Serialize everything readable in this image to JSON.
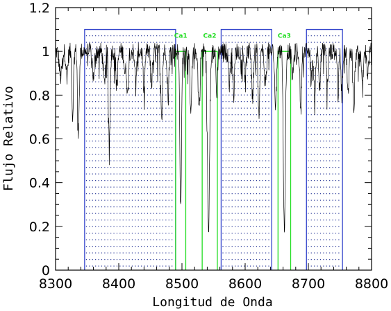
{
  "chart_data": {
    "type": "line",
    "xlabel": "Longitud de Onda",
    "ylabel": "Flujo Relativo",
    "xlim": [
      8300,
      8800
    ],
    "ylim": [
      0,
      1.2
    ],
    "xticks": [
      8300,
      8400,
      8500,
      8600,
      8700,
      8800
    ],
    "xtick_labels": [
      "8300",
      "8400",
      "8500",
      "8600",
      "8700",
      "8800"
    ],
    "yticks": [
      0,
      0.2,
      0.4,
      0.6,
      0.8,
      1.0,
      1.2
    ],
    "ytick_labels": [
      "0",
      "0.2",
      "0.4",
      "0.6",
      "0.8",
      "1",
      "1.2"
    ],
    "continuum_bands": [
      {
        "x0": 8346,
        "x1": 8490,
        "height": 1.1
      },
      {
        "x0": 8562,
        "x1": 8642,
        "height": 1.1
      },
      {
        "x0": 8697,
        "x1": 8754,
        "height": 1.1
      }
    ],
    "line_bands": [
      {
        "name": "Ca1",
        "x0": 8490,
        "x1": 8506,
        "height": 1.0
      },
      {
        "name": "Ca2",
        "x0": 8532,
        "x1": 8556,
        "height": 1.0
      },
      {
        "name": "Ca3",
        "x0": 8652,
        "x1": 8672,
        "height": 1.0
      }
    ],
    "spectrum_features": [
      {
        "x": 8308,
        "depth": 0.12,
        "width": 2
      },
      {
        "x": 8318,
        "depth": 0.1,
        "width": 1.5
      },
      {
        "x": 8327,
        "depth": 0.3,
        "width": 1.2
      },
      {
        "x": 8336,
        "depth": 0.4,
        "width": 1.2
      },
      {
        "x": 8360,
        "depth": 0.12,
        "width": 1.5
      },
      {
        "x": 8377,
        "depth": 0.15,
        "width": 1.5
      },
      {
        "x": 8385,
        "depth": 0.42,
        "width": 1.2
      },
      {
        "x": 8397,
        "depth": 0.15,
        "width": 1.5
      },
      {
        "x": 8410,
        "depth": 0.1,
        "width": 1.5
      },
      {
        "x": 8414,
        "depth": 0.2,
        "width": 1.2
      },
      {
        "x": 8427,
        "depth": 0.15,
        "width": 1.3
      },
      {
        "x": 8440,
        "depth": 0.2,
        "width": 1.3
      },
      {
        "x": 8452,
        "depth": 0.12,
        "width": 1.5
      },
      {
        "x": 8468,
        "depth": 0.3,
        "width": 1.2
      },
      {
        "x": 8478,
        "depth": 0.2,
        "width": 1.2
      },
      {
        "x": 8498,
        "depth": 0.72,
        "width": 1.3
      },
      {
        "x": 8514,
        "depth": 0.25,
        "width": 1.5
      },
      {
        "x": 8527,
        "depth": 0.25,
        "width": 1.5
      },
      {
        "x": 8542,
        "depth": 0.84,
        "width": 1.6
      },
      {
        "x": 8555,
        "depth": 0.2,
        "width": 1.2
      },
      {
        "x": 8575,
        "depth": 0.15,
        "width": 1.3
      },
      {
        "x": 8582,
        "depth": 0.2,
        "width": 1.2
      },
      {
        "x": 8600,
        "depth": 0.12,
        "width": 1.5
      },
      {
        "x": 8612,
        "depth": 0.18,
        "width": 1.3
      },
      {
        "x": 8622,
        "depth": 0.3,
        "width": 1.2
      },
      {
        "x": 8632,
        "depth": 0.15,
        "width": 1.5
      },
      {
        "x": 8648,
        "depth": 0.25,
        "width": 1.3
      },
      {
        "x": 8662,
        "depth": 0.82,
        "width": 1.5
      },
      {
        "x": 8675,
        "depth": 0.12,
        "width": 1.5
      },
      {
        "x": 8688,
        "depth": 0.28,
        "width": 1.2
      },
      {
        "x": 8705,
        "depth": 0.12,
        "width": 1.5
      },
      {
        "x": 8710,
        "depth": 0.2,
        "width": 1.2
      },
      {
        "x": 8718,
        "depth": 0.15,
        "width": 1.3
      },
      {
        "x": 8730,
        "depth": 0.15,
        "width": 1.3
      },
      {
        "x": 8747,
        "depth": 0.2,
        "width": 1.2
      },
      {
        "x": 8753,
        "depth": 0.2,
        "width": 1.2
      },
      {
        "x": 8763,
        "depth": 0.2,
        "width": 1.3
      },
      {
        "x": 8772,
        "depth": 0.25,
        "width": 1.2
      },
      {
        "x": 8785,
        "depth": 0.15,
        "width": 1.3
      },
      {
        "x": 8794,
        "depth": 0.1,
        "width": 1.5
      }
    ],
    "spectrum_noise": 0.04,
    "grid": false,
    "colors": {
      "spectrum": "#000000",
      "continuum_band": "#3344cc",
      "line_band": "#22dd22",
      "fill_dots": "#2b3a99"
    }
  }
}
